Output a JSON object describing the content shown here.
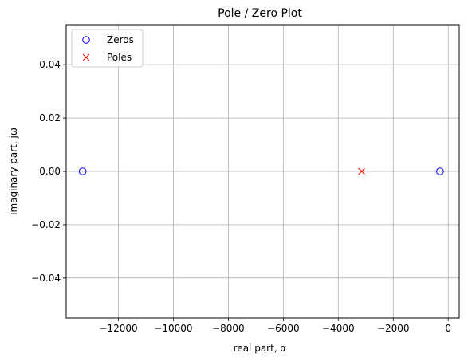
{
  "chart_data": {
    "type": "scatter",
    "title": "Pole / Zero Plot",
    "xlabel": "real part, α",
    "ylabel": "imaginary part, jω",
    "xlim": [
      -13900,
      400
    ],
    "ylim": [
      -0.055,
      0.055
    ],
    "xticks": [
      -12000,
      -10000,
      -8000,
      -6000,
      -4000,
      -2000,
      0
    ],
    "xtick_labels": [
      "−12000",
      "−10000",
      "−8000",
      "−6000",
      "−4000",
      "−2000",
      "0"
    ],
    "yticks": [
      0.04,
      0.02,
      0.0,
      -0.02,
      -0.04
    ],
    "ytick_labels": [
      "0.04",
      "0.02",
      "0.00",
      "−0.02",
      "−0.04"
    ],
    "grid": true,
    "legend": "top-left",
    "series": [
      {
        "name": "Zeros",
        "marker": "circle-open",
        "color": "#0000ff",
        "points": [
          {
            "x": -13300,
            "y": 0.0
          },
          {
            "x": -300,
            "y": 0.0
          }
        ]
      },
      {
        "name": "Poles",
        "marker": "x",
        "color": "#ff0000",
        "points": [
          {
            "x": -3150,
            "y": 0.0
          }
        ]
      }
    ]
  }
}
